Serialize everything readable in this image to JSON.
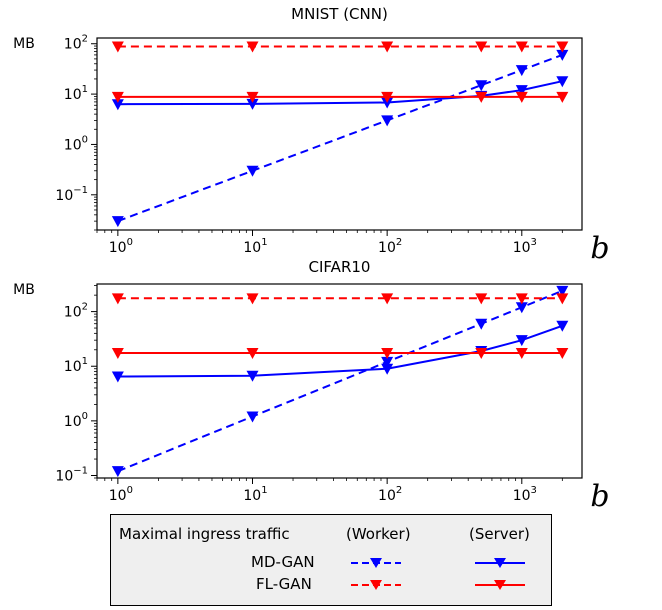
{
  "chart_data": [
    {
      "type": "line",
      "title": "MNIST (CNN)",
      "ylabel": "MB",
      "xlabel": "b",
      "xscale": "log",
      "yscale": "log",
      "xlim": [
        0.7,
        2800
      ],
      "ylim": [
        0.02,
        130
      ],
      "xticks": [
        1,
        10,
        100,
        1000
      ],
      "xtick_labels": [
        [
          "10",
          "0"
        ],
        [
          "10",
          "1"
        ],
        [
          "10",
          "2"
        ],
        [
          "10",
          "3"
        ]
      ],
      "yticks": [
        0.1,
        1,
        10,
        100
      ],
      "ytick_labels": [
        [
          "10",
          "−1"
        ],
        [
          "10",
          "0"
        ],
        [
          "10",
          "1"
        ],
        [
          "10",
          "2"
        ]
      ],
      "grid": false,
      "series": [
        {
          "name": "MD-GAN (Worker)",
          "color": "#0000ff",
          "dash": true,
          "x": [
            1,
            10,
            100,
            500,
            1000,
            2000
          ],
          "y": [
            0.03,
            0.3,
            3,
            15,
            30,
            60
          ]
        },
        {
          "name": "MD-GAN (Server)",
          "color": "#0000ff",
          "dash": false,
          "x": [
            1,
            10,
            100,
            500,
            1000,
            2000
          ],
          "y": [
            6.3,
            6.4,
            6.8,
            9.2,
            12,
            18
          ]
        },
        {
          "name": "FL-GAN (Worker)",
          "color": "#ff0000",
          "dash": true,
          "x": [
            1,
            10,
            100,
            500,
            1000,
            2000
          ],
          "y": [
            88,
            88,
            88,
            88,
            88,
            88
          ]
        },
        {
          "name": "FL-GAN (Server)",
          "color": "#ff0000",
          "dash": false,
          "x": [
            1,
            10,
            100,
            500,
            1000,
            2000
          ],
          "y": [
            8.8,
            8.8,
            8.8,
            8.8,
            8.8,
            8.8
          ]
        }
      ]
    },
    {
      "type": "line",
      "title": "CIFAR10",
      "ylabel": "MB",
      "xlabel": "b",
      "xscale": "log",
      "yscale": "log",
      "xlim": [
        0.7,
        2800
      ],
      "ylim": [
        0.09,
        320
      ],
      "xticks": [
        1,
        10,
        100,
        1000
      ],
      "xtick_labels": [
        [
          "10",
          "0"
        ],
        [
          "10",
          "1"
        ],
        [
          "10",
          "2"
        ],
        [
          "10",
          "3"
        ]
      ],
      "yticks": [
        0.1,
        1,
        10,
        100
      ],
      "ytick_labels": [
        [
          "10",
          "−1"
        ],
        [
          "10",
          "0"
        ],
        [
          "10",
          "1"
        ],
        [
          "10",
          "2"
        ]
      ],
      "grid": false,
      "series": [
        {
          "name": "MD-GAN (Worker)",
          "color": "#0000ff",
          "dash": true,
          "x": [
            1,
            10,
            100,
            500,
            1000,
            2000
          ],
          "y": [
            0.12,
            1.2,
            12,
            60,
            120,
            240
          ]
        },
        {
          "name": "MD-GAN (Server)",
          "color": "#0000ff",
          "dash": false,
          "x": [
            1,
            10,
            100,
            500,
            1000,
            2000
          ],
          "y": [
            6.5,
            6.7,
            9,
            19,
            30,
            55
          ]
        },
        {
          "name": "FL-GAN (Worker)",
          "color": "#ff0000",
          "dash": true,
          "x": [
            1,
            10,
            100,
            500,
            1000,
            2000
          ],
          "y": [
            175,
            175,
            175,
            175,
            175,
            175
          ]
        },
        {
          "name": "FL-GAN (Server)",
          "color": "#ff0000",
          "dash": false,
          "x": [
            1,
            10,
            100,
            500,
            1000,
            2000
          ],
          "y": [
            17.5,
            17.5,
            17.5,
            17.5,
            17.5,
            17.5
          ]
        }
      ]
    }
  ],
  "legend": {
    "heading": "Maximal ingress traffic",
    "col_worker": "(Worker)",
    "col_server": "(Server)",
    "rows": [
      {
        "label": "MD-GAN",
        "color": "#0000ff"
      },
      {
        "label": "FL-GAN",
        "color": "#ff0000"
      }
    ]
  }
}
